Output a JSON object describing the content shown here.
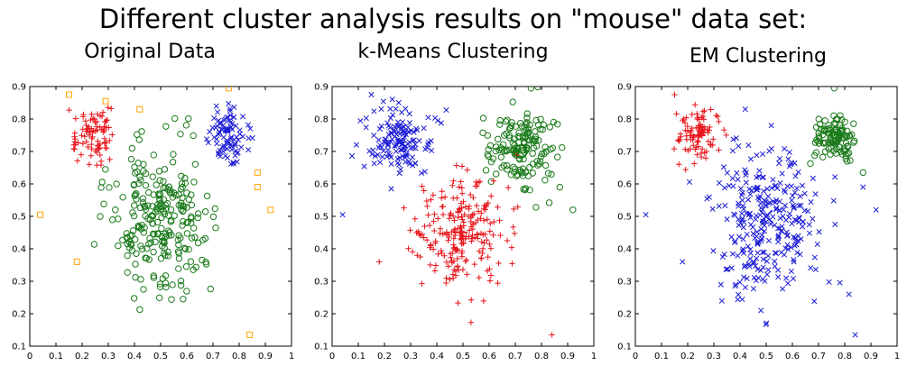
{
  "figure_title": "Different cluster analysis results on \"mouse\" data set:",
  "colors": {
    "red": "#e8141b",
    "green": "#1a7a1a",
    "blue": "#1c1cd6",
    "orange": "#ffa500",
    "axis": "#000000"
  },
  "chart_data": [
    {
      "type": "scatter",
      "title": "Original Data",
      "xlim": [
        0,
        1
      ],
      "ylim": [
        0.1,
        0.9
      ],
      "xticks": [
        "0",
        "0.1",
        "0.2",
        "0.3",
        "0.4",
        "0.5",
        "0.6",
        "0.7",
        "0.8",
        "0.9",
        "1"
      ],
      "yticks": [
        "0.1",
        "0.2",
        "0.3",
        "0.4",
        "0.5",
        "0.6",
        "0.7",
        "0.8",
        "0.9"
      ],
      "grid": false,
      "series": [
        {
          "marker": "plus",
          "color": "red",
          "cluster": {
            "cx": 0.24,
            "cy": 0.75,
            "sx": 0.04,
            "sy": 0.04,
            "n": 90
          }
        },
        {
          "marker": "x",
          "color": "blue",
          "cluster": {
            "cx": 0.76,
            "cy": 0.75,
            "sx": 0.04,
            "sy": 0.04,
            "n": 90
          }
        },
        {
          "marker": "circle",
          "color": "green",
          "cluster": {
            "cx": 0.5,
            "cy": 0.5,
            "sx": 0.09,
            "sy": 0.11,
            "n": 250
          }
        },
        {
          "marker": "square",
          "color": "orange",
          "points": [
            [
              0.15,
              0.875
            ],
            [
              0.29,
              0.855
            ],
            [
              0.42,
              0.83
            ],
            [
              0.76,
              0.895
            ],
            [
              0.87,
              0.635
            ],
            [
              0.87,
              0.59
            ],
            [
              0.92,
              0.52
            ],
            [
              0.04,
              0.505
            ],
            [
              0.18,
              0.36
            ],
            [
              0.84,
              0.135
            ]
          ]
        }
      ]
    },
    {
      "type": "scatter",
      "title": "k-Means Clustering",
      "xlim": [
        0,
        1
      ],
      "ylim": [
        0.1,
        0.9
      ],
      "xticks": [
        "0",
        "0.1",
        "0.2",
        "0.3",
        "0.4",
        "0.5",
        "0.6",
        "0.7",
        "0.8",
        "0.9",
        "1"
      ],
      "yticks": [
        "0.1",
        "0.2",
        "0.3",
        "0.4",
        "0.5",
        "0.6",
        "0.7",
        "0.8",
        "0.9"
      ],
      "grid": false,
      "series": [
        {
          "marker": "x",
          "color": "blue",
          "cluster": {
            "cx": 0.26,
            "cy": 0.73,
            "sx": 0.06,
            "sy": 0.06,
            "n": 140
          }
        },
        {
          "marker": "circle",
          "color": "green",
          "cluster": {
            "cx": 0.72,
            "cy": 0.71,
            "sx": 0.06,
            "sy": 0.06,
            "n": 150
          }
        },
        {
          "marker": "plus",
          "color": "red",
          "cluster": {
            "cx": 0.5,
            "cy": 0.45,
            "sx": 0.09,
            "sy": 0.09,
            "n": 230
          }
        },
        {
          "marker": "x",
          "color": "blue",
          "points": [
            [
              0.04,
              0.505
            ],
            [
              0.15,
              0.875
            ]
          ]
        },
        {
          "marker": "circle",
          "color": "green",
          "points": [
            [
              0.76,
              0.895
            ],
            [
              0.92,
              0.52
            ],
            [
              0.87,
              0.59
            ]
          ]
        },
        {
          "marker": "plus",
          "color": "red",
          "points": [
            [
              0.18,
              0.36
            ],
            [
              0.84,
              0.135
            ]
          ]
        }
      ],
      "centroids": [
        {
          "marker": "big-x",
          "color": "blue",
          "x": 0.26,
          "y": 0.73
        },
        {
          "marker": "big-circle",
          "color": "green",
          "x": 0.72,
          "y": 0.7
        },
        {
          "marker": "big-plus",
          "color": "red",
          "x": 0.49,
          "y": 0.45
        }
      ]
    },
    {
      "type": "scatter",
      "title": "EM Clustering",
      "xlim": [
        0,
        1
      ],
      "ylim": [
        0.1,
        0.9
      ],
      "xticks": [
        "0",
        "0.1",
        "0.2",
        "0.3",
        "0.4",
        "0.5",
        "0.6",
        "0.7",
        "0.8",
        "0.9",
        "1"
      ],
      "yticks": [
        "0.1",
        "0.2",
        "0.3",
        "0.4",
        "0.5",
        "0.6",
        "0.7",
        "0.8",
        "0.9"
      ],
      "grid": false,
      "series": [
        {
          "marker": "plus",
          "color": "red",
          "cluster": {
            "cx": 0.24,
            "cy": 0.75,
            "sx": 0.04,
            "sy": 0.04,
            "n": 90
          }
        },
        {
          "marker": "circle",
          "color": "green",
          "cluster": {
            "cx": 0.76,
            "cy": 0.74,
            "sx": 0.04,
            "sy": 0.04,
            "n": 100
          }
        },
        {
          "marker": "x",
          "color": "blue",
          "cluster": {
            "cx": 0.5,
            "cy": 0.49,
            "sx": 0.1,
            "sy": 0.11,
            "n": 290
          }
        },
        {
          "marker": "x",
          "color": "blue",
          "points": [
            [
              0.04,
              0.505
            ],
            [
              0.18,
              0.36
            ],
            [
              0.42,
              0.83
            ],
            [
              0.87,
              0.59
            ],
            [
              0.92,
              0.52
            ],
            [
              0.84,
              0.135
            ]
          ]
        },
        {
          "marker": "plus",
          "color": "red",
          "points": [
            [
              0.15,
              0.875
            ]
          ]
        },
        {
          "marker": "circle",
          "color": "green",
          "points": [
            [
              0.76,
              0.895
            ],
            [
              0.87,
              0.635
            ]
          ]
        }
      ],
      "centroids": [
        {
          "marker": "big-plus",
          "color": "red",
          "x": 0.24,
          "y": 0.75
        },
        {
          "marker": "big-circle",
          "color": "green",
          "x": 0.76,
          "y": 0.74
        },
        {
          "marker": "big-x",
          "color": "blue",
          "x": 0.5,
          "y": 0.5
        }
      ]
    }
  ]
}
